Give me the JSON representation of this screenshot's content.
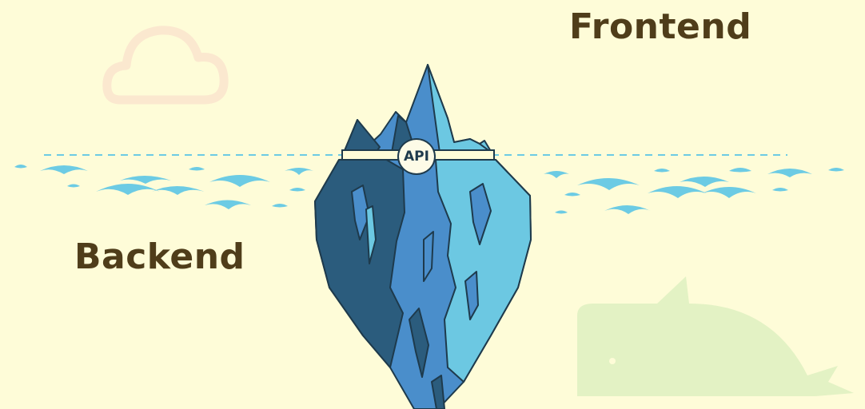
{
  "labels": {
    "frontend": "Frontend",
    "backend": "Backend",
    "api": "API"
  },
  "icons": [
    "cloud-icon",
    "whale-icon",
    "iceberg-icon",
    "wave-icon"
  ],
  "colors": {
    "background": "#fefcd8",
    "text": "#4f3d1a",
    "water": "#6ccbe4",
    "iceberg_dark": "#2b5c7d",
    "iceberg_mid": "#4a8ecb",
    "iceberg_light": "#6cc8e2",
    "iceberg_outline": "#1e3a4c",
    "cloud": "#fbe8cf",
    "whale": "#e3f2c4"
  }
}
